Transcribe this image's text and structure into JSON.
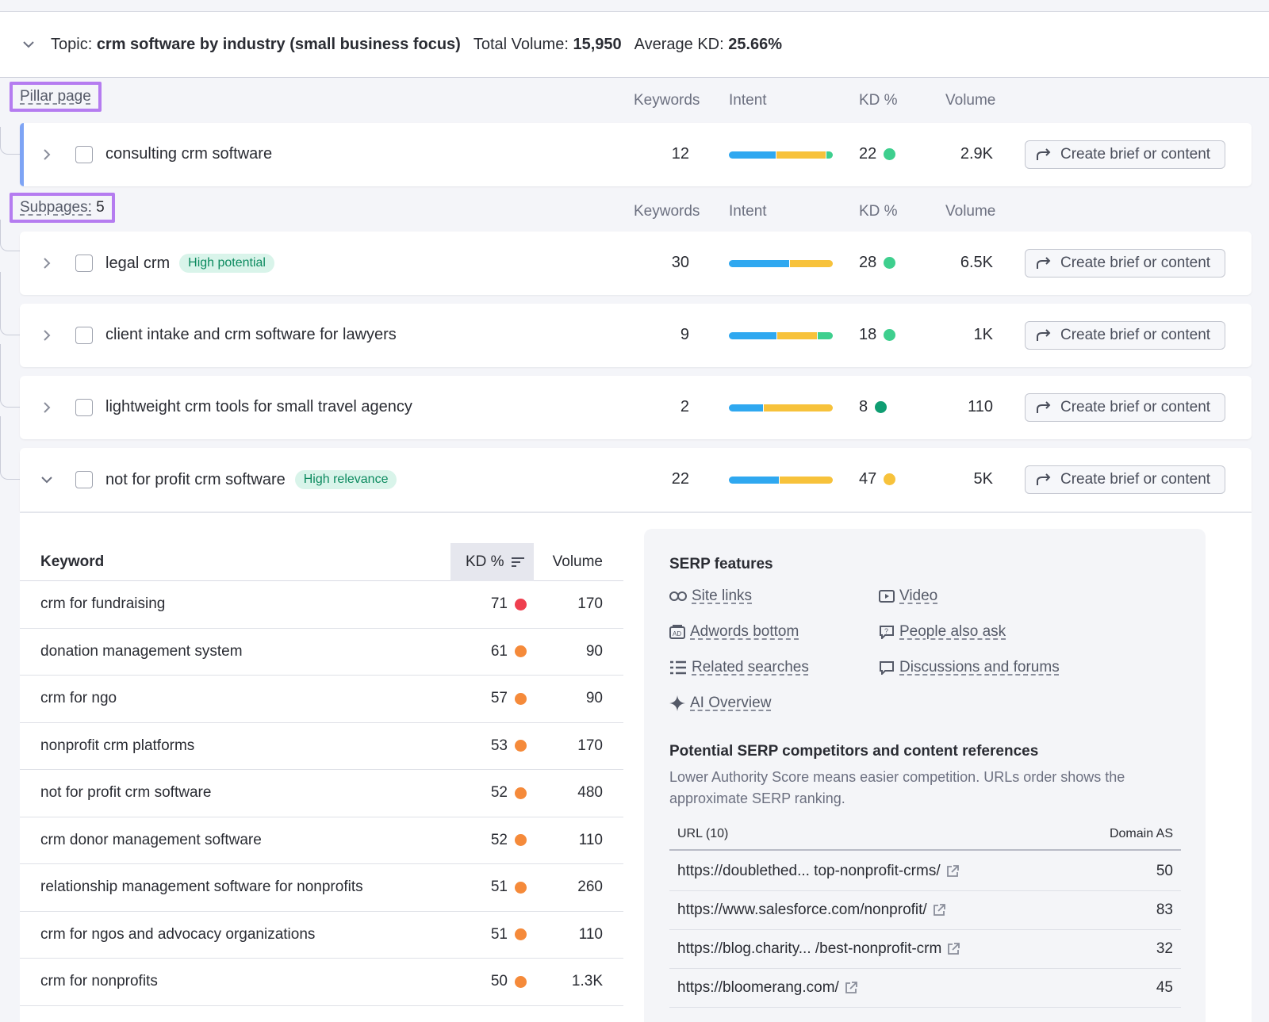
{
  "topic": {
    "topic_label": "Topic:",
    "topic_name": "crm software by industry (small business focus)",
    "total_volume_label": "Total Volume:",
    "total_volume": "15,950",
    "avg_kd_label": "Average KD:",
    "avg_kd": "25.66%"
  },
  "columns": {
    "keywords": "Keywords",
    "intent": "Intent",
    "kd": "KD %",
    "volume": "Volume"
  },
  "pillar": {
    "label": "Pillar page",
    "row": {
      "title": "consulting crm software",
      "keywords": "12",
      "kd": "22",
      "kd_color": "#3ecf8e",
      "volume": "2.9K",
      "intent": [
        0.45,
        0.48,
        0.07
      ],
      "button": "Create brief or content"
    }
  },
  "subpages": {
    "label": "Subpages:",
    "count": "5",
    "rows": [
      {
        "title": "legal crm",
        "badge": "High potential",
        "keywords": "30",
        "kd": "28",
        "kd_color": "#3ecf8e",
        "volume": "6.5K",
        "intent": [
          0.58,
          0.42,
          0
        ],
        "button": "Create brief or content"
      },
      {
        "title": "client intake and crm software for lawyers",
        "badge": "",
        "keywords": "9",
        "kd": "18",
        "kd_color": "#3ecf8e",
        "volume": "1K",
        "intent": [
          0.46,
          0.39,
          0.15
        ],
        "button": "Create brief or content"
      },
      {
        "title": "lightweight crm tools for small travel agency",
        "badge": "",
        "keywords": "2",
        "kd": "8",
        "kd_color": "#0f9d72",
        "volume": "110",
        "intent": [
          0.33,
          0.67,
          0
        ],
        "button": "Create brief or content"
      },
      {
        "title": "not for profit crm software",
        "badge": "High relevance",
        "keywords": "22",
        "kd": "47",
        "kd_color": "#f7c23b",
        "volume": "5K",
        "intent": [
          0.48,
          0.52,
          0
        ],
        "button": "Create brief or content"
      }
    ]
  },
  "intent_colors": [
    "#2fa8f0",
    "#f7c23b",
    "#3ecf8e"
  ],
  "keyword_table": {
    "headers": {
      "keyword": "Keyword",
      "kd": "KD %",
      "volume": "Volume"
    },
    "rows": [
      {
        "keyword": "crm for fundraising",
        "kd": "71",
        "color": "#ef3f4f",
        "volume": "170"
      },
      {
        "keyword": "donation management system",
        "kd": "61",
        "color": "#f58a3a",
        "volume": "90"
      },
      {
        "keyword": "crm for ngo",
        "kd": "57",
        "color": "#f58a3a",
        "volume": "90"
      },
      {
        "keyword": "nonprofit crm platforms",
        "kd": "53",
        "color": "#f58a3a",
        "volume": "170"
      },
      {
        "keyword": "not for profit crm software",
        "kd": "52",
        "color": "#f58a3a",
        "volume": "480"
      },
      {
        "keyword": "crm donor management software",
        "kd": "52",
        "color": "#f58a3a",
        "volume": "110"
      },
      {
        "keyword": "relationship management software for nonprofits",
        "kd": "51",
        "color": "#f58a3a",
        "volume": "260"
      },
      {
        "keyword": "crm for ngos and advocacy organizations",
        "kd": "51",
        "color": "#f58a3a",
        "volume": "110"
      },
      {
        "keyword": "crm for nonprofits",
        "kd": "50",
        "color": "#f58a3a",
        "volume": "1.3K"
      }
    ]
  },
  "serp": {
    "title": "SERP features",
    "features": [
      {
        "label": "Site links",
        "icon": "link-icon"
      },
      {
        "label": "Video",
        "icon": "video-icon"
      },
      {
        "label": "Adwords bottom",
        "icon": "ad-icon"
      },
      {
        "label": "People also ask",
        "icon": "question-icon"
      },
      {
        "label": "Related searches",
        "icon": "list-icon"
      },
      {
        "label": "Discussions and forums",
        "icon": "chat-icon"
      },
      {
        "label": "AI Overview",
        "icon": "sparkle-icon"
      }
    ],
    "competitors_title": "Potential SERP competitors and content references",
    "competitors_desc": "Lower Authority Score means easier competition. URLs order shows the approximate SERP ranking.",
    "url_header": "URL (10)",
    "as_header": "Domain AS",
    "urls": [
      {
        "url": "https://doublethed...  top-nonprofit-crms/",
        "as": "50"
      },
      {
        "url": "https://www.salesforce.com/nonprofit/",
        "as": "83"
      },
      {
        "url": "https://blog.charity... /best-nonprofit-crm",
        "as": "32"
      },
      {
        "url": "https://bloomerang.com/",
        "as": "45"
      }
    ]
  }
}
